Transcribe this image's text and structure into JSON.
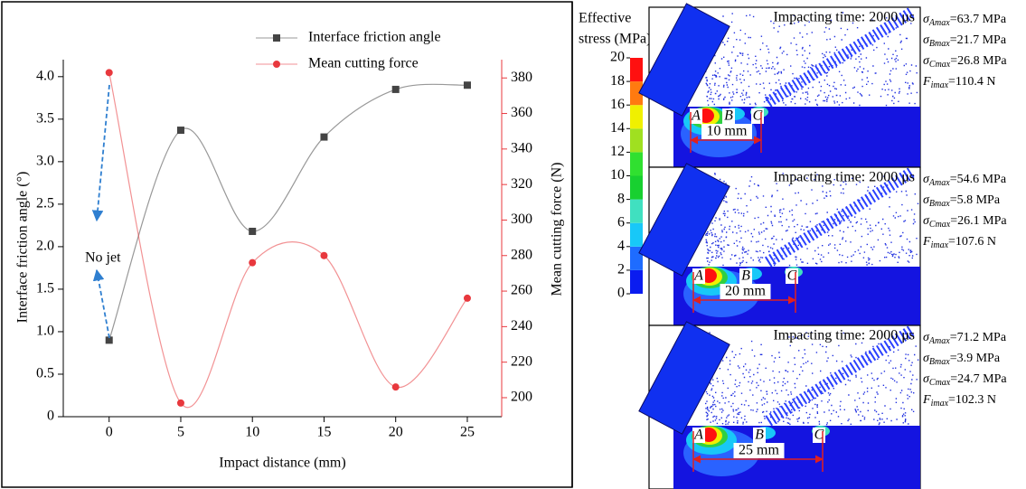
{
  "chart_data": {
    "type": "line",
    "x": [
      0,
      5,
      10,
      15,
      20,
      25
    ],
    "series": [
      {
        "name": "Interface friction angle",
        "color": "#444444",
        "values": [
          0.9,
          3.37,
          2.18,
          3.29,
          3.85,
          3.9
        ]
      },
      {
        "name": "Mean cutting force",
        "color": "#e8383d",
        "axis": "y2",
        "values": [
          383,
          197,
          276,
          280,
          206,
          256
        ]
      }
    ],
    "xlabel": "Impact distance (mm)",
    "ylabel": "Interface friction angle (°)",
    "y2label": "Mean cutting force (N)",
    "xlim": [
      -3.2,
      27.4
    ],
    "xticks": [
      0,
      5,
      10,
      15,
      20,
      25
    ],
    "ylim": [
      0,
      4.2
    ],
    "yticks": [
      0,
      0.5,
      {
        "value": 1,
        "label": "1.0"
      },
      1.5,
      {
        "value": 2,
        "label": "2.0"
      },
      2.5,
      {
        "value": 3,
        "label": "3.0"
      },
      3.5,
      {
        "value": 4,
        "label": "4.0"
      }
    ],
    "y2lim": [
      189.3,
      390.3
    ],
    "y2ticks": [
      200,
      220,
      240,
      260,
      280,
      300,
      320,
      340,
      360,
      380
    ],
    "y2color": "#e8383d",
    "legend": "top",
    "annotation": "No jet"
  },
  "simulation": {
    "colorbar": {
      "title_lines": [
        "Effective",
        "stress (MPa)"
      ],
      "ticks": [
        0,
        2,
        4,
        6,
        8,
        10,
        12,
        14,
        16,
        18,
        20
      ],
      "colors": [
        "#0a1cf0",
        "#1e6cff",
        "#18c8f8",
        "#40e0c0",
        "#18d030",
        "#30e030",
        "#a0e020",
        "#f0f000",
        "#ff7a10",
        "#ff1010"
      ]
    },
    "panels": [
      {
        "time_label": "Impacting time: 2000 μs",
        "points": [
          "A",
          "B",
          "C"
        ],
        "distance": "10 mm",
        "stresses": [
          {
            "symbol": "σ",
            "subscript": "Amax",
            "text": "=63.7 MPa"
          },
          {
            "symbol": "σ",
            "subscript": "Bmax",
            "text": "=21.7 MPa"
          },
          {
            "symbol": "σ",
            "subscript": "Cmax",
            "text": "=26.8 MPa"
          },
          {
            "symbol": "F",
            "subscript": "imax",
            "text": "=110.4 N"
          }
        ]
      },
      {
        "time_label": "Impacting time: 2000 μs",
        "points": [
          "A",
          "B",
          "C"
        ],
        "distance": "20 mm",
        "stresses": [
          {
            "symbol": "σ",
            "subscript": "Amax",
            "text": "=54.6 MPa"
          },
          {
            "symbol": "σ",
            "subscript": "Bmax",
            "text": "=5.8 MPa"
          },
          {
            "symbol": "σ",
            "subscript": "Cmax",
            "text": "=26.1 MPa"
          },
          {
            "symbol": "F",
            "subscript": "imax",
            "text": "=107.6 N"
          }
        ]
      },
      {
        "time_label": "Impacting time: 2000 μs",
        "points": [
          "A",
          "B",
          "C"
        ],
        "distance": "25 mm",
        "stresses": [
          {
            "symbol": "σ",
            "subscript": "Amax",
            "text": "=71.2 MPa"
          },
          {
            "symbol": "σ",
            "subscript": "Bmax",
            "text": "=3.9 MPa"
          },
          {
            "symbol": "σ",
            "subscript": "Cmax",
            "text": "=24.7 MPa"
          },
          {
            "symbol": "F",
            "subscript": "imax",
            "text": "=102.3 N"
          }
        ]
      }
    ]
  }
}
